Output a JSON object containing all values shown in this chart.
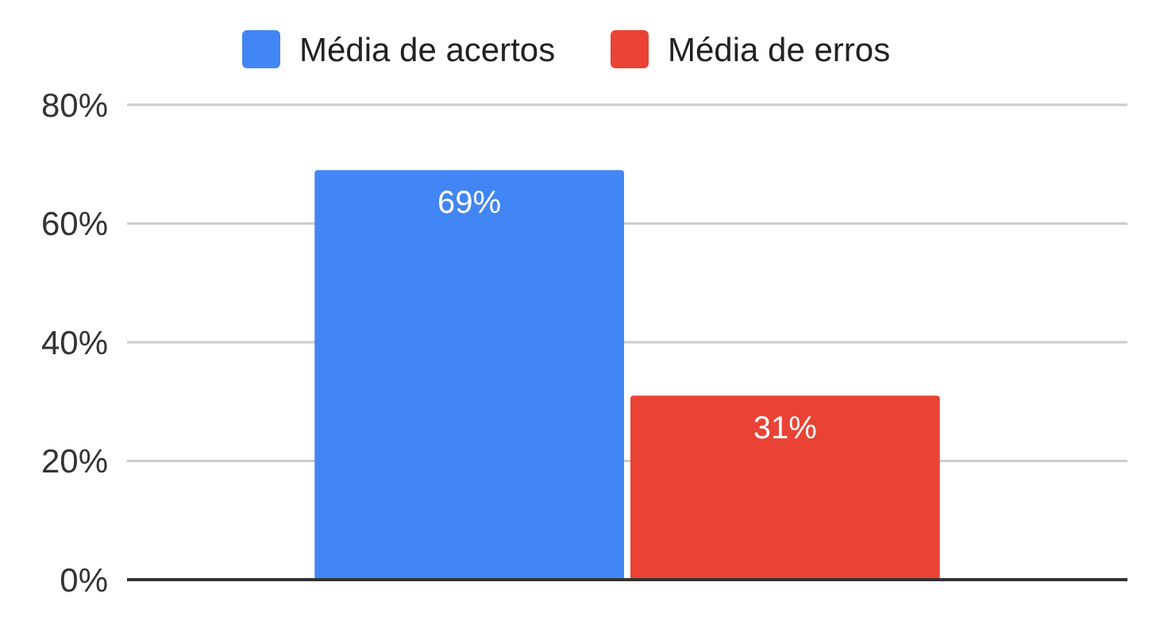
{
  "chart_data": {
    "type": "bar",
    "categories": [
      null
    ],
    "series": [
      {
        "name": "Média de acertos",
        "color": "#4285f4",
        "values": [
          69
        ]
      },
      {
        "name": "Média de erros",
        "color": "#ea4335",
        "values": [
          31
        ]
      }
    ],
    "ylim": [
      0,
      80
    ],
    "yticks": [
      {
        "value": 0,
        "label": "0%"
      },
      {
        "value": 20,
        "label": "20%"
      },
      {
        "value": 40,
        "label": "40%"
      },
      {
        "value": 60,
        "label": "60%"
      },
      {
        "value": 80,
        "label": "80%"
      }
    ],
    "grid": "y",
    "legend": "top",
    "value_labels": [
      [
        "69%"
      ],
      [
        "31%"
      ]
    ]
  }
}
